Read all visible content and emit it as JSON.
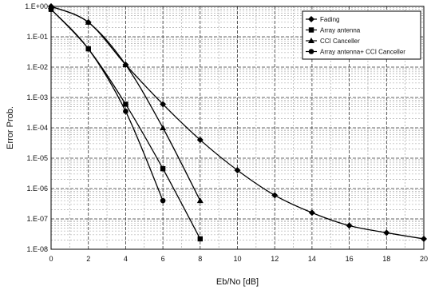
{
  "chart_data": {
    "type": "line",
    "xlabel": "Eb/No [dB]",
    "ylabel": "Error Prob.",
    "xlim": [
      0,
      20
    ],
    "ylim": [
      1e-08,
      1
    ],
    "yscale": "log",
    "grid": true,
    "legend_position": "top-right",
    "x_ticks": [
      "0",
      "2",
      "4",
      "6",
      "8",
      "10",
      "12",
      "14",
      "16",
      "18",
      "20"
    ],
    "y_ticks": [
      "1.E+00",
      "1.E-01",
      "1.E-02",
      "1.E-03",
      "1.E-04",
      "1.E-05",
      "1.E-06",
      "1.E-07",
      "1.E-08"
    ],
    "series": [
      {
        "name": "Fading",
        "marker": "diamond",
        "x": [
          0,
          2,
          4,
          6,
          8,
          10,
          12,
          14,
          16,
          18,
          20
        ],
        "y": [
          1.0,
          0.3,
          0.012,
          0.0006,
          4e-05,
          4e-06,
          6e-07,
          1.6e-07,
          6e-08,
          3.5e-08,
          2.2e-08
        ]
      },
      {
        "name": "Array antenna",
        "marker": "square",
        "x": [
          0,
          2,
          4,
          6,
          8
        ],
        "y": [
          0.8,
          0.04,
          0.0006,
          4.5e-06,
          2.2e-08
        ]
      },
      {
        "name": "CCI Canceller",
        "marker": "triangle",
        "x": [
          0,
          2,
          4,
          6,
          8
        ],
        "y": [
          1.0,
          0.3,
          0.012,
          0.0001,
          4e-07
        ]
      },
      {
        "name": "Array antenna+ CCI Canceller",
        "marker": "circle",
        "x": [
          0,
          2,
          4,
          6
        ],
        "y": [
          0.8,
          0.04,
          0.00035,
          4e-07
        ]
      }
    ]
  }
}
